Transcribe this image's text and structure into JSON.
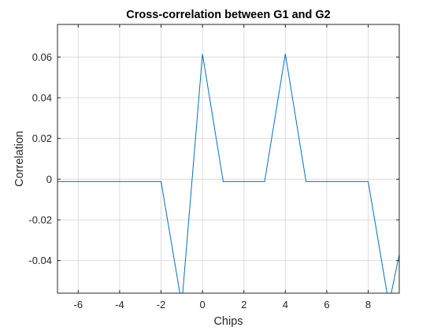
{
  "chart_data": {
    "type": "line",
    "title": "Cross-correlation between G1 and G2",
    "xlabel": "Chips",
    "ylabel": "Correlation",
    "xlim": [
      -7,
      9.5
    ],
    "ylim": [
      -0.056,
      0.076
    ],
    "xticks": [
      -6,
      -4,
      -2,
      0,
      2,
      4,
      6,
      8
    ],
    "yticks": [
      -0.04,
      -0.02,
      0,
      0.02,
      0.04,
      0.06
    ],
    "xtick_labels": [
      "-6",
      "-4",
      "-2",
      "0",
      "2",
      "4",
      "6",
      "8"
    ],
    "ytick_labels": [
      "-0.04",
      "-0.02",
      "0",
      "0.02",
      "0.04",
      "0.06"
    ],
    "grid": true,
    "series": [
      {
        "color": "#0072BD",
        "x": [
          -7,
          -6,
          -5,
          -4,
          -3,
          -2,
          -1,
          0,
          1,
          2,
          3,
          4,
          5,
          6,
          7,
          8,
          9,
          9.5
        ],
        "y": [
          -0.0012,
          -0.0012,
          -0.0012,
          -0.0012,
          -0.0012,
          -0.0012,
          -0.0615,
          0.0615,
          -0.0012,
          -0.0012,
          -0.0012,
          0.0615,
          -0.0012,
          -0.0012,
          -0.0012,
          -0.0012,
          -0.0615,
          -0.037
        ]
      }
    ]
  }
}
